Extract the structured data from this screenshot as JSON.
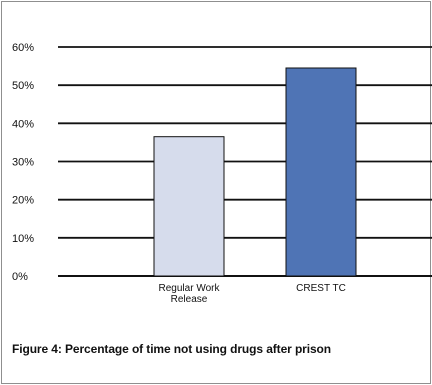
{
  "chart_data": {
    "type": "bar",
    "categories": [
      "Regular Work\nRelease",
      "CREST TC"
    ],
    "values": [
      36.5,
      54.5
    ],
    "ylim": [
      0,
      60
    ],
    "yticks": [
      0,
      10,
      20,
      30,
      40,
      50,
      60
    ],
    "ytick_labels": [
      "0%",
      "10%",
      "20%",
      "30%",
      "40%",
      "50%",
      "60%"
    ],
    "grid": true,
    "colors": [
      "#d6dcec",
      "#4f74b5"
    ],
    "title": "",
    "xlabel": "",
    "ylabel": ""
  },
  "caption": "Figure 4: Percentage of time not using drugs after prison"
}
